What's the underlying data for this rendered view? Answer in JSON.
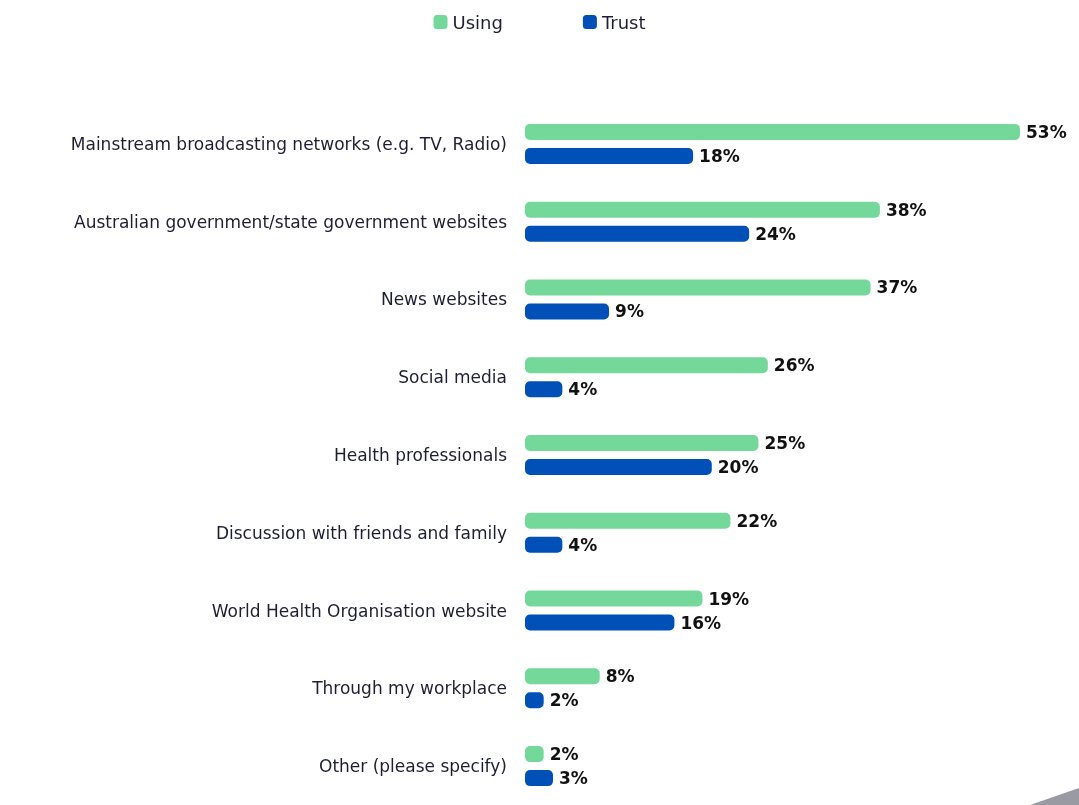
{
  "chart_data": {
    "type": "bar",
    "orientation": "horizontal",
    "legend": "top",
    "categories": [
      "Mainstream broadcasting networks (e.g. TV, Radio)",
      "Australian government/state government websites",
      "News websites",
      "Social media",
      "Health professionals",
      "Discussion with friends and family",
      "World Health Organisation website",
      "Through my workplace",
      "Other (please specify)"
    ],
    "series": [
      {
        "name": "Using",
        "color": "#74d89a",
        "values": [
          53,
          38,
          37,
          26,
          25,
          22,
          19,
          8,
          2
        ],
        "value_labels": [
          "53%",
          "38%",
          "37%",
          "26%",
          "25%",
          "22%",
          "19%",
          "8%",
          "2%"
        ]
      },
      {
        "name": "Trust",
        "color": "#0050b8",
        "values": [
          18,
          24,
          9,
          4,
          20,
          4,
          16,
          2,
          3
        ],
        "value_labels": [
          "18%",
          "24%",
          "9%",
          "4%",
          "20%",
          "4%",
          "16%",
          "2%",
          "3%"
        ]
      }
    ]
  }
}
